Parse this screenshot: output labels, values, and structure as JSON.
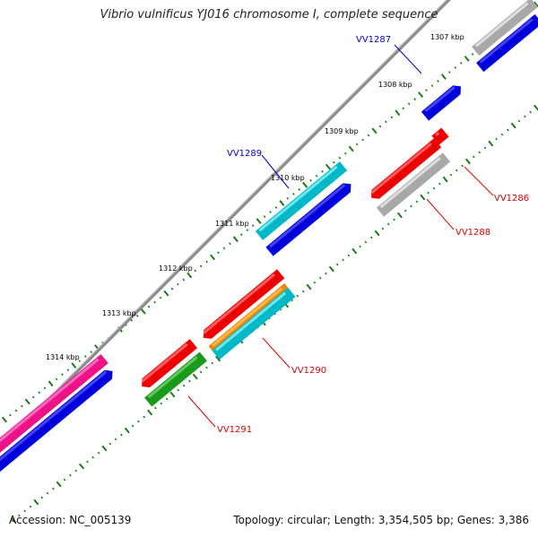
{
  "title": "Vibrio vulnificus YJ016 chromosome I, complete sequence",
  "footer": {
    "accession": "Accession: NC_005139",
    "stats": "Topology: circular; Length: 3,354,505 bp; Genes: 3,386"
  },
  "colors": {
    "backbone": "#8a8a8a",
    "tick": "#1a7a1a",
    "label_forward": "#0000cc",
    "label_reverse": "#dd0000"
  },
  "axis_labels": [
    {
      "kbp": 1307,
      "text": "1307 kbp"
    },
    {
      "kbp": 1308,
      "text": "1308 kbp"
    },
    {
      "kbp": 1309,
      "text": "1309 kbp"
    },
    {
      "kbp": 1310,
      "text": "1310 kbp"
    },
    {
      "kbp": 1311,
      "text": "1311 kbp"
    },
    {
      "kbp": 1312,
      "text": "1312 kbp"
    },
    {
      "kbp": 1313,
      "text": "1313 kbp"
    },
    {
      "kbp": 1314,
      "text": "1314 kbp"
    }
  ],
  "gene_labels": [
    {
      "name": "vv1287-label",
      "text": "VV1287",
      "strand": "forward"
    },
    {
      "name": "vv1289-label",
      "text": "VV1289",
      "strand": "forward"
    },
    {
      "name": "vv1286-label",
      "text": "VV1286",
      "strand": "reverse"
    },
    {
      "name": "vv1288-label",
      "text": "VV1288",
      "strand": "reverse"
    },
    {
      "name": "vv1290-label",
      "text": "VV1290",
      "strand": "reverse"
    },
    {
      "name": "vv1291-label",
      "text": "VV1291",
      "strand": "reverse"
    }
  ]
}
